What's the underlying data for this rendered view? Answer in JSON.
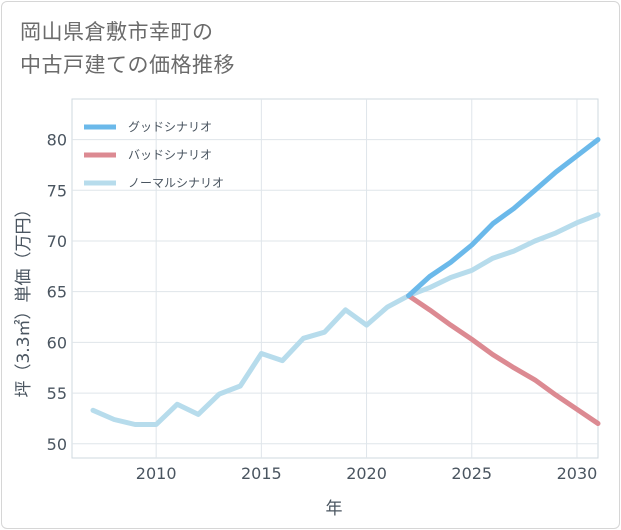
{
  "title_lines": [
    "岡山県倉敷市幸町の",
    "中古戸建ての価格推移"
  ],
  "chart_data": {
    "type": "line",
    "xlabel": "年",
    "ylabel": "坪（3.3㎡）単価（万円）",
    "xlim": [
      2006,
      2031
    ],
    "ylim": [
      48.6,
      84.0
    ],
    "x_ticks": [
      2010,
      2015,
      2020,
      2025,
      2030
    ],
    "y_ticks": [
      50,
      55,
      60,
      65,
      70,
      75,
      80
    ],
    "legend_position": "top-left",
    "series": [
      {
        "name": "グッドシナリオ",
        "color": "#6bb9ea",
        "x": [
          2022,
          2023,
          2024,
          2025,
          2026,
          2027,
          2028,
          2029,
          2030,
          2031
        ],
        "y": [
          64.6,
          66.5,
          67.9,
          69.6,
          71.7,
          73.2,
          75.0,
          76.8,
          78.4,
          80.0
        ]
      },
      {
        "name": "バッドシナリオ",
        "color": "#dc8a92",
        "x": [
          2022,
          2023,
          2024,
          2025,
          2026,
          2027,
          2028,
          2029,
          2030,
          2031
        ],
        "y": [
          64.6,
          63.2,
          61.7,
          60.3,
          58.8,
          57.5,
          56.3,
          54.8,
          53.4,
          52.0
        ]
      },
      {
        "name": "ノーマルシナリオ",
        "color": "#b7dcec",
        "x": [
          2007,
          2008,
          2009,
          2010,
          2011,
          2012,
          2013,
          2014,
          2015,
          2016,
          2017,
          2018,
          2019,
          2020,
          2021,
          2022,
          2023,
          2024,
          2025,
          2026,
          2027,
          2028,
          2029,
          2030,
          2031
        ],
        "y": [
          53.3,
          52.4,
          51.9,
          51.9,
          53.9,
          52.9,
          54.9,
          55.7,
          58.9,
          58.2,
          60.4,
          61.0,
          63.2,
          61.7,
          63.5,
          64.6,
          65.4,
          66.4,
          67.1,
          68.3,
          69.0,
          70.0,
          70.8,
          71.8,
          72.6
        ]
      }
    ]
  }
}
